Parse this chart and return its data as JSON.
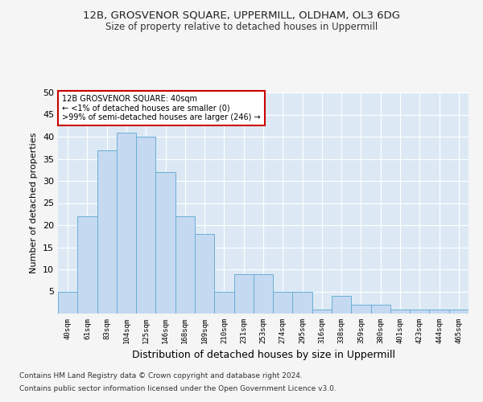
{
  "title": "12B, GROSVENOR SQUARE, UPPERMILL, OLDHAM, OL3 6DG",
  "subtitle": "Size of property relative to detached houses in Uppermill",
  "xlabel": "Distribution of detached houses by size in Uppermill",
  "ylabel": "Number of detached properties",
  "categories": [
    "40sqm",
    "61sqm",
    "83sqm",
    "104sqm",
    "125sqm",
    "146sqm",
    "168sqm",
    "189sqm",
    "210sqm",
    "231sqm",
    "253sqm",
    "274sqm",
    "295sqm",
    "316sqm",
    "338sqm",
    "359sqm",
    "380sqm",
    "401sqm",
    "423sqm",
    "444sqm",
    "465sqm"
  ],
  "values": [
    5,
    22,
    37,
    41,
    40,
    32,
    22,
    18,
    5,
    9,
    9,
    5,
    5,
    1,
    4,
    2,
    2,
    1,
    1,
    1,
    1
  ],
  "bar_color": "#c5d9f0",
  "bar_edge_color": "#6baed6",
  "annotation_box_text": "12B GROSVENOR SQUARE: 40sqm\n← <1% of detached houses are smaller (0)\n>99% of semi-detached houses are larger (246) →",
  "annotation_box_color": "#ffffff",
  "annotation_box_edge_color": "#cc0000",
  "highlight_bar_index": 0,
  "fig_bg_color": "#f5f5f5",
  "plot_bg_color": "#dce9f5",
  "grid_color": "#ffffff",
  "ylim": [
    0,
    50
  ],
  "yticks": [
    0,
    5,
    10,
    15,
    20,
    25,
    30,
    35,
    40,
    45,
    50
  ],
  "footer_line1": "Contains HM Land Registry data © Crown copyright and database right 2024.",
  "footer_line2": "Contains public sector information licensed under the Open Government Licence v3.0."
}
